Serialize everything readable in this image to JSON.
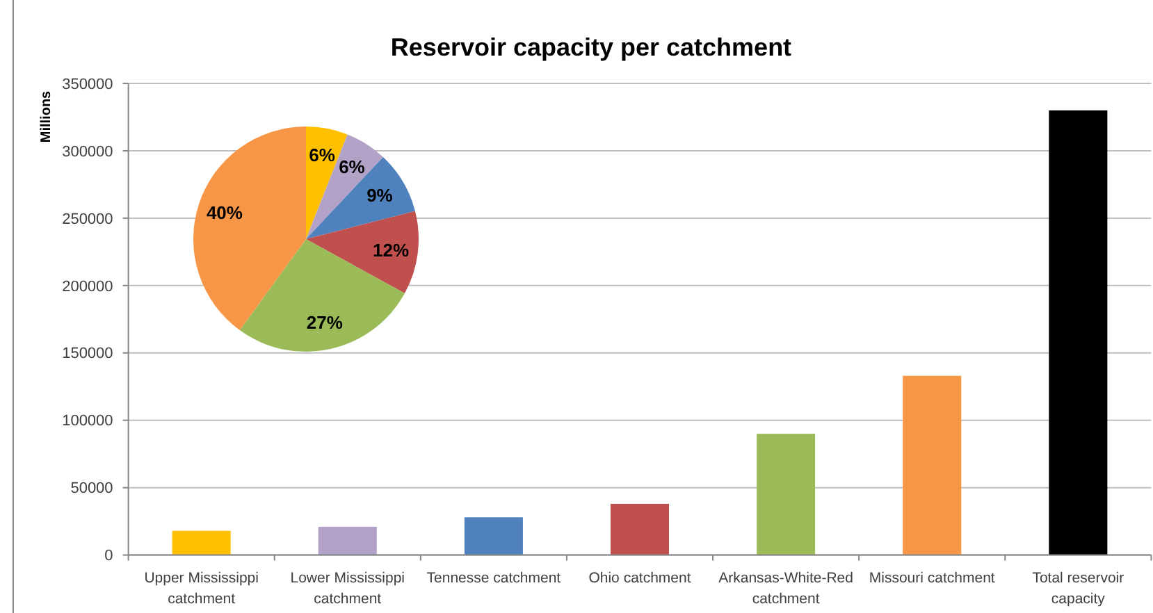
{
  "chart_data": [
    {
      "type": "bar",
      "title": "Reservoir capacity per catchment",
      "ylabel": "Millions",
      "categories": [
        "Upper Mississippi catchment",
        "Lower Mississippi catchment",
        "Tennesse catchment",
        "Ohio catchment",
        "Arkansas-White-Red catchment",
        "Missouri catchment",
        "Total reservoir capacity"
      ],
      "values": [
        18000,
        21000,
        28000,
        38000,
        90000,
        133000,
        330000
      ],
      "colors": [
        "#ffc000",
        "#b2a2c7",
        "#4f81bd",
        "#c0504d",
        "#9bbb59",
        "#f79646",
        "#000000"
      ],
      "ylim": [
        0,
        350000
      ],
      "yticks": [
        0,
        50000,
        100000,
        150000,
        200000,
        250000,
        300000,
        350000
      ],
      "grid": "y"
    },
    {
      "type": "pie",
      "categories": [
        null,
        null,
        null,
        null,
        null,
        null
      ],
      "values": [
        6,
        6,
        9,
        12,
        27,
        40
      ],
      "colors": [
        "#ffc000",
        "#b2a2c7",
        "#4f81bd",
        "#c0504d",
        "#9bbb59",
        "#f79646"
      ],
      "value_labels": [
        "6%",
        "6%",
        "9%",
        "12%",
        "27%",
        "40%"
      ]
    }
  ]
}
